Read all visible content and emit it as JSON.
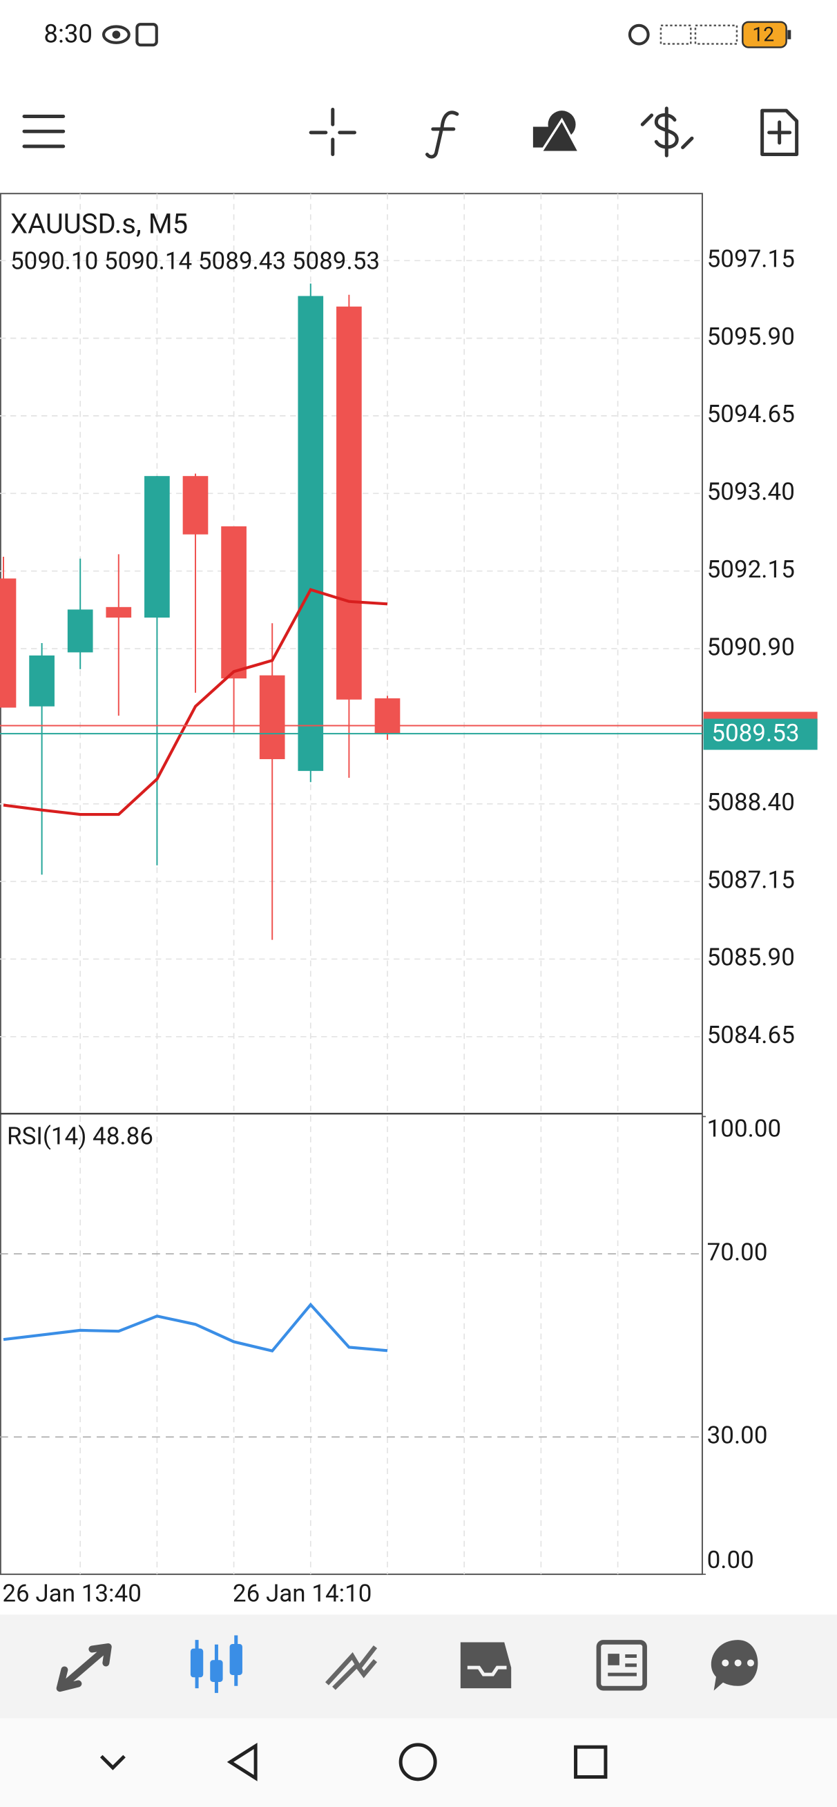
{
  "status_bar": {
    "time": "8:30",
    "battery": "12"
  },
  "chart_data": [
    {
      "type": "candlestick",
      "title": "XAUUSD.s, M5",
      "ohlc_header": "5090.10 5090.14 5089.43 5089.53",
      "categories": [
        "26 Jan 13:40",
        null,
        null,
        null,
        null,
        null,
        "26 Jan 14:10",
        null,
        null,
        null,
        null
      ],
      "open": [
        5092.03,
        5089.97,
        5090.84,
        5091.57,
        5091.4,
        5093.68,
        5092.87,
        5090.47,
        5088.93,
        5096.41,
        5090.1
      ],
      "high": [
        5092.38,
        5090.99,
        5092.35,
        5092.42,
        5093.68,
        5093.72,
        5092.87,
        5091.31,
        5096.78,
        5096.6,
        5090.14
      ],
      "low": [
        5089.95,
        5087.26,
        5090.57,
        5089.82,
        5087.41,
        5090.19,
        5089.55,
        5086.21,
        5088.75,
        5088.82,
        5089.43
      ],
      "close": [
        5089.95,
        5090.79,
        5091.53,
        5091.4,
        5093.68,
        5092.74,
        5090.42,
        5089.12,
        5096.58,
        5090.08,
        5089.53
      ],
      "up_color": "#26a69a",
      "down_color": "#ef5350",
      "series": [
        {
          "color": "#d81e1e",
          "values": [
            5088.38,
            5088.3,
            5088.23,
            5088.23,
            5088.8,
            5089.97,
            5090.53,
            5090.71,
            5091.85,
            5091.66,
            5091.62
          ]
        }
      ],
      "bid": 5089.53,
      "bid_color": "#26a69a",
      "ask": 5089.66,
      "ask_color": "#ef5350",
      "ylim": [
        5083.41,
        5098.23
      ],
      "yticks": [
        5084.65,
        {
          "value": 5085.9,
          "label": "5085.90"
        },
        5087.15,
        {
          "value": 5088.4,
          "label": "5088.40"
        },
        {
          "value": 5090.9,
          "label": "5090.90"
        },
        5092.15,
        {
          "value": 5093.4,
          "label": "5093.40"
        },
        5094.65,
        {
          "value": 5095.9,
          "label": "5095.90"
        },
        5097.15
      ],
      "grid": true
    },
    {
      "type": "line",
      "title": "RSI(14) 48.86",
      "values": [
        51.3,
        52.3,
        53.3,
        53.1,
        56.4,
        54.6,
        50.8,
        48.8,
        58.9,
        49.6,
        48.86
      ],
      "color": "#3a8ee6",
      "ylim": [
        0,
        100
      ],
      "yticks": [
        {
          "value": 0,
          "label": "0.00"
        },
        {
          "value": 30,
          "label": "30.00"
        },
        {
          "value": 70,
          "label": "70.00"
        },
        {
          "value": 100,
          "label": "100.00"
        }
      ]
    }
  ]
}
